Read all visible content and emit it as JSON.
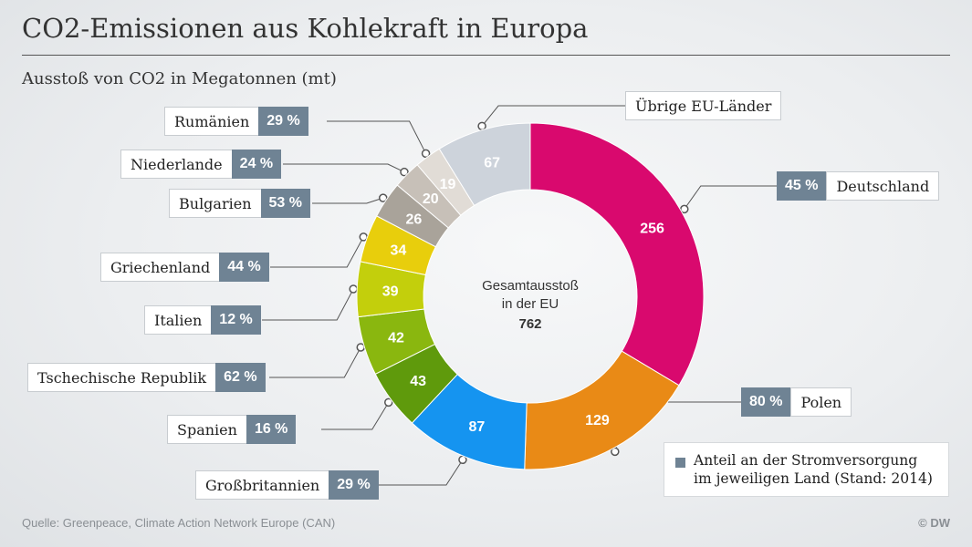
{
  "title": "CO2-Emissionen aus Kohlekraft in Europa",
  "subtitle": "Ausstoß von CO2 in Megatonnen (mt)",
  "chart_data": {
    "type": "pie",
    "title": "CO2-Emissionen aus Kohlekraft in Europa",
    "subtitle": "Ausstoß von CO2 in Megatonnen (mt)",
    "center": {
      "line1": "Gesamtausstoß",
      "line2": "in der EU",
      "total": "762"
    },
    "slices": [
      {
        "country": "Deutschland",
        "value": 256,
        "share": "45 %",
        "color": "#d9096e"
      },
      {
        "country": "Polen",
        "value": 129,
        "share": "80 %",
        "color": "#e98a16"
      },
      {
        "country": "Großbritannien",
        "value": 87,
        "share": "29 %",
        "color": "#1594f0"
      },
      {
        "country": "Spanien",
        "value": 43,
        "share": "16 %",
        "color": "#5f9a0c"
      },
      {
        "country": "Tschechische Republik",
        "value": 42,
        "share": "62 %",
        "color": "#8ab70f"
      },
      {
        "country": "Italien",
        "value": 39,
        "share": "12 %",
        "color": "#c3cf0c"
      },
      {
        "country": "Griechenland",
        "value": 34,
        "share": "44 %",
        "color": "#e8ce0c"
      },
      {
        "country": "Bulgarien",
        "value": 26,
        "share": "53 %",
        "color": "#a9a39a"
      },
      {
        "country": "Niederlande",
        "value": 20,
        "share": "24 %",
        "color": "#c7c0b8"
      },
      {
        "country": "Rumänien",
        "value": 19,
        "share": "29 %",
        "color": "#e1dcd6"
      },
      {
        "country": "Übrige EU-Länder",
        "value": 67,
        "share": "",
        "color": "#cdd3db"
      }
    ],
    "legend": "Anteil an der Stromversorgung im jeweiligen Land (Stand: 2014)",
    "legend_color": "#6f8394"
  },
  "source": "Quelle: Greenpeace, Climate Action Network Europe (CAN)",
  "credit": "© DW"
}
